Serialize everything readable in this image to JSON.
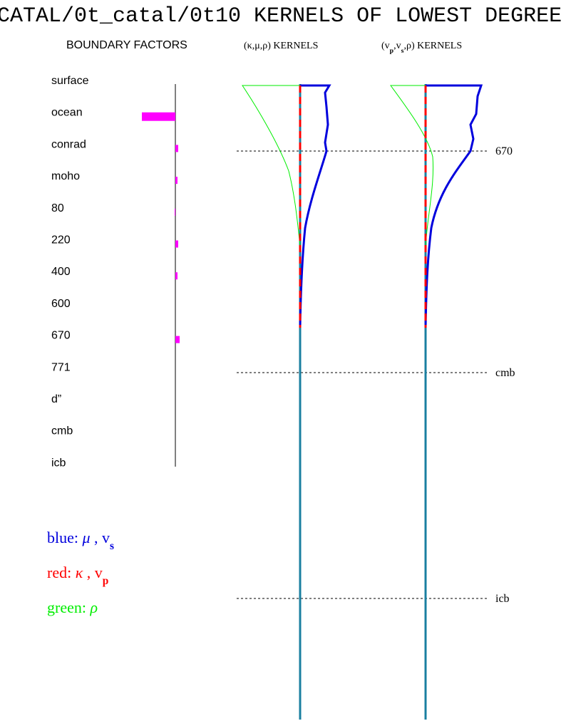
{
  "title": "CATAL/0t_catal/0t10 KERNELS OF LOWEST DEGREE",
  "boundary_factors": {
    "heading": "BOUNDARY FACTORS",
    "layers": [
      {
        "label": "surface",
        "value": 0
      },
      {
        "label": "ocean",
        "value": -47
      },
      {
        "label": "conrad",
        "value": 4
      },
      {
        "label": "moho",
        "value": 3
      },
      {
        "label": "80",
        "value": -1
      },
      {
        "label": "220",
        "value": 4
      },
      {
        "label": "400",
        "value": 3
      },
      {
        "label": "600",
        "value": 0
      },
      {
        "label": "670",
        "value": 6
      },
      {
        "label": "771",
        "value": 0
      },
      {
        "label": "d”",
        "value": 0
      },
      {
        "label": "cmb",
        "value": 0
      },
      {
        "label": "icb",
        "value": 0
      }
    ],
    "color": "#ff00ff"
  },
  "panels": [
    {
      "heading": [
        {
          "text": "(κ,μ,ρ) KERNELS",
          "sub": false
        }
      ]
    },
    {
      "heading": [
        {
          "text": "(v",
          "sub": false
        },
        {
          "text": "p",
          "sub": true
        },
        {
          "text": ",v",
          "sub": false
        },
        {
          "text": "s",
          "sub": true
        },
        {
          "text": ",ρ) KERNELS",
          "sub": false
        }
      ]
    }
  ],
  "depth_markers": [
    "670",
    "cmb",
    "icb"
  ],
  "legend": [
    {
      "color": "#0000dd",
      "parts": [
        {
          "text": "blue:  ",
          "sub": false
        },
        {
          "text": "μ",
          "sub": false
        },
        {
          "text": " , v",
          "sub": false
        },
        {
          "text": "s",
          "sub": true
        }
      ]
    },
    {
      "color": "#ff0000",
      "parts": [
        {
          "text": "red:  ",
          "sub": false
        },
        {
          "text": "κ",
          "sub": false
        },
        {
          "text": " , v",
          "sub": false
        },
        {
          "text": "p",
          "sub": true
        }
      ]
    },
    {
      "color": "#00ee00",
      "parts": [
        {
          "text": "green:  ",
          "sub": false
        },
        {
          "text": "ρ",
          "sub": false
        }
      ]
    }
  ]
}
